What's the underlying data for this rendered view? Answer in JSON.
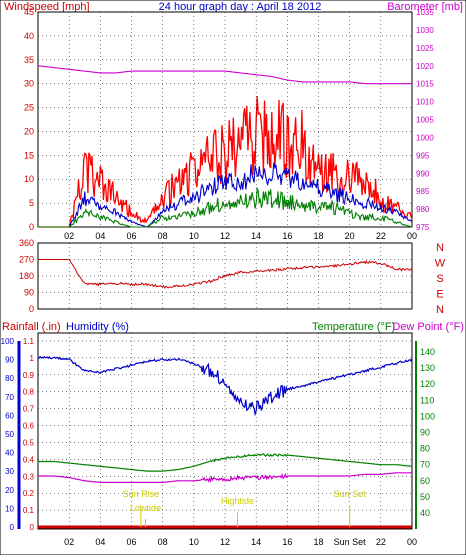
{
  "header": {
    "left_label": "Windspeed [mph]",
    "title": "24 hour graph day : April 18 2012",
    "right_label": "Barometer [mb]"
  },
  "colors": {
    "wind_gust": "#ff0000",
    "wind_avg": "#0000cc",
    "wind_min": "#008000",
    "barometer": "#cc00cc",
    "direction": "#cc0000",
    "humidity": "#0000cc",
    "temperature": "#008000",
    "dewpoint": "#cc00cc",
    "rainfall": "#cc0000",
    "events": "#cccc00",
    "grid": "#000000",
    "axis_left": "#cc0000",
    "axis_right_baro": "#cc00cc",
    "axis_right_temp": "#008000",
    "axis_humidity": "#0000cc"
  },
  "chart_data": [
    {
      "type": "line",
      "id": "wind",
      "title": "24 hour graph day : April 18 2012",
      "ylabel": "Windspeed [mph]",
      "y2label": "Barometer [mb]",
      "x": [
        "00",
        "01",
        "02",
        "03",
        "04",
        "05",
        "06",
        "07",
        "08",
        "09",
        "10",
        "11",
        "12",
        "13",
        "14",
        "15",
        "16",
        "17",
        "18",
        "19",
        "20",
        "21",
        "22",
        "23",
        "24"
      ],
      "x_tick_labels": [
        "02",
        "04",
        "06",
        "08",
        "10",
        "12",
        "14",
        "16",
        "18",
        "20",
        "22",
        "00"
      ],
      "ylim": [
        0,
        45
      ],
      "y_ticks": [
        0,
        5,
        10,
        15,
        20,
        25,
        30,
        35,
        40,
        45
      ],
      "y2lim": [
        975,
        1035
      ],
      "y2_ticks": [
        975,
        980,
        985,
        990,
        995,
        1000,
        1005,
        1010,
        1015,
        1020,
        1025,
        1030,
        1035
      ],
      "grid": true,
      "series": [
        {
          "name": "",
          "axis": "left",
          "values": [
            0,
            0,
            0,
            12,
            9,
            6,
            3,
            1,
            6,
            9,
            12,
            14,
            16,
            18,
            19,
            19,
            18,
            17,
            14,
            12,
            10,
            9,
            6,
            4,
            2
          ]
        },
        {
          "name": "",
          "axis": "left",
          "values": [
            0,
            0,
            0,
            6,
            4,
            3,
            1,
            0,
            3,
            5,
            6,
            8,
            9,
            10,
            11,
            11,
            10,
            9,
            8,
            7,
            6,
            5,
            4,
            3,
            1
          ]
        },
        {
          "name": "",
          "axis": "left",
          "values": [
            0,
            0,
            0,
            3,
            2,
            1,
            0,
            0,
            2,
            2,
            3,
            4,
            5,
            5,
            6,
            6,
            5,
            5,
            4,
            4,
            3,
            2,
            2,
            1,
            0
          ]
        },
        {
          "name": "",
          "axis": "right",
          "values": [
            1020,
            1019.5,
            1019,
            1018.5,
            1018,
            1018,
            1018.5,
            1018.5,
            1018.5,
            1018.5,
            1018.5,
            1018.5,
            1018.5,
            1018,
            1017.5,
            1017,
            1016,
            1015.5,
            1015.5,
            1015.5,
            1015.5,
            1015,
            1015,
            1015,
            1015
          ]
        }
      ]
    },
    {
      "type": "line",
      "id": "direction",
      "ylabel": "",
      "y2_letters": [
        "N",
        "W",
        "S",
        "E",
        "N"
      ],
      "x_tick_labels": [
        "02",
        "04",
        "06",
        "08",
        "10",
        "12",
        "14",
        "16",
        "18",
        "20",
        "22",
        "00"
      ],
      "ylim": [
        0,
        360
      ],
      "y_ticks": [
        0,
        90,
        180,
        270,
        360
      ],
      "grid": true,
      "series": [
        {
          "name": "",
          "values": [
            270,
            270,
            270,
            135,
            135,
            140,
            135,
            135,
            120,
            125,
            135,
            150,
            180,
            200,
            205,
            210,
            220,
            225,
            230,
            235,
            245,
            255,
            250,
            215,
            215
          ]
        }
      ]
    },
    {
      "type": "line",
      "id": "climate",
      "x_tick_labels": [
        "02",
        "04",
        "06",
        "08",
        "10",
        "12",
        "14",
        "16",
        "18",
        "Sun Set",
        "22",
        "00"
      ],
      "rain_label": "Rainfall (.in)",
      "humidity_label": "Humidity (%)",
      "temp_label": "Temperature (°F)",
      "dew_label": "Dew Point (°F)",
      "rain_lim": [
        0,
        1.1
      ],
      "rain_ticks": [
        0,
        0.1,
        0.2,
        0.3,
        0.4,
        0.5,
        0.6,
        0.7,
        0.8,
        0.9,
        1,
        1.1
      ],
      "humidity_lim": [
        0,
        100
      ],
      "humidity_ticks": [
        0,
        10,
        20,
        30,
        40,
        50,
        60,
        70,
        80,
        90,
        100
      ],
      "temp_lim": [
        30,
        145
      ],
      "temp_ticks": [
        40,
        50,
        60,
        70,
        80,
        90,
        100,
        110,
        120,
        130,
        140
      ],
      "grid": true,
      "series": [
        {
          "name": "",
          "axis": "humidity",
          "values": [
            91,
            91,
            90,
            84,
            83,
            85,
            87,
            89,
            90,
            90,
            88,
            84,
            78,
            66,
            64,
            70,
            74,
            76,
            78,
            80,
            82,
            84,
            86,
            88,
            90
          ]
        },
        {
          "name": "",
          "axis": "temp",
          "values": [
            72,
            72,
            71,
            70,
            69,
            68,
            67,
            66,
            66,
            67,
            69,
            72,
            74,
            75,
            76,
            76,
            76,
            75,
            74,
            73,
            72,
            71,
            70,
            70,
            69
          ]
        },
        {
          "name": "",
          "axis": "temp",
          "values": [
            63,
            63,
            62,
            60,
            59,
            59,
            59,
            59,
            59,
            60,
            60,
            61,
            61,
            62,
            62,
            62,
            63,
            63,
            63,
            63,
            63,
            64,
            64,
            65,
            65
          ]
        },
        {
          "name": "",
          "axis": "rain",
          "values": [
            0,
            0,
            0,
            0,
            0,
            0,
            0,
            0,
            0,
            0,
            0,
            0,
            0,
            0,
            0,
            0,
            0,
            0,
            0,
            0,
            0,
            0,
            0,
            0,
            0
          ]
        }
      ],
      "annotations": [
        {
          "label": "Sun Rise",
          "hour": 6.6,
          "row": 1
        },
        {
          "label": "Lowtide",
          "hour": 6.9,
          "row": 2
        },
        {
          "label": "Hightide",
          "hour": 12.8,
          "row": 1.5
        },
        {
          "label": "Sun Set",
          "hour": 20.0,
          "row": 1
        }
      ]
    }
  ]
}
